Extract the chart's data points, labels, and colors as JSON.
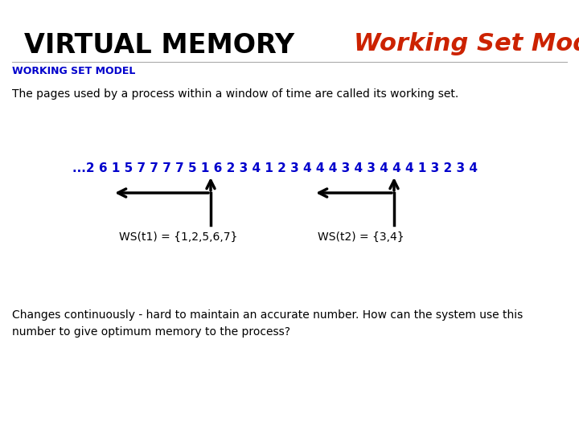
{
  "title_left": "VIRTUAL MEMORY",
  "title_right": "Working Set Model",
  "title_left_color": "#000000",
  "title_right_color": "#cc2200",
  "subtitle": "WORKING SET MODEL",
  "subtitle_color": "#0000cc",
  "body_text": "The pages used by a process within a window of time are called its working set.",
  "sequence_text": "...2 6 1 5 7 7 7 7 5 1 6 2 3 4 1 2 3 4 4 4 3 4 3 4 4 4 1 3 2 3 4",
  "sequence_color": "#0000cc",
  "ws1_label": "WS(t1) = {1,2,5,6,7}",
  "ws2_label": "WS(t2) = {3,4}",
  "bottom_text": "Changes continuously - hard to maintain an accurate number. How can the system use this\nnumber to give optimum memory to the process?",
  "bg_color": "#ffffff"
}
